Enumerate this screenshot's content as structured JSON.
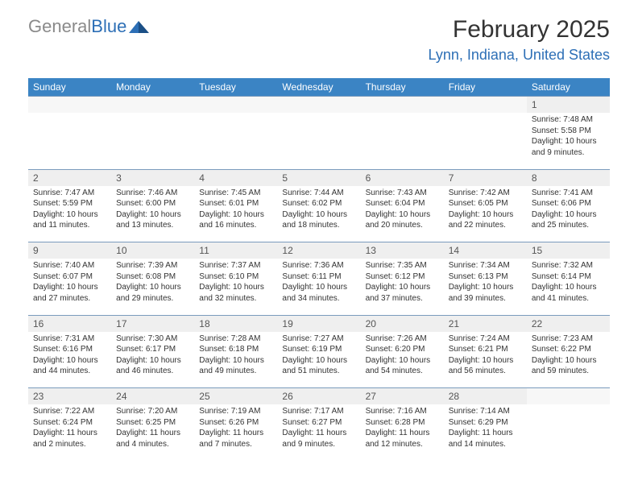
{
  "logo": {
    "part1": "General",
    "part2": "Blue"
  },
  "title": "February 2025",
  "location": "Lynn, Indiana, United States",
  "colors": {
    "header_bg": "#3b84c4",
    "header_text": "#ffffff",
    "daynum_bg": "#efefef",
    "border": "#7a9bbd",
    "logo_grey": "#8a8a8a",
    "logo_blue": "#2d6fb6"
  },
  "day_names": [
    "Sunday",
    "Monday",
    "Tuesday",
    "Wednesday",
    "Thursday",
    "Friday",
    "Saturday"
  ],
  "weeks": [
    [
      null,
      null,
      null,
      null,
      null,
      null,
      {
        "n": "1",
        "sr": "7:48 AM",
        "ss": "5:58 PM",
        "dl": "10 hours and 9 minutes."
      }
    ],
    [
      {
        "n": "2",
        "sr": "7:47 AM",
        "ss": "5:59 PM",
        "dl": "10 hours and 11 minutes."
      },
      {
        "n": "3",
        "sr": "7:46 AM",
        "ss": "6:00 PM",
        "dl": "10 hours and 13 minutes."
      },
      {
        "n": "4",
        "sr": "7:45 AM",
        "ss": "6:01 PM",
        "dl": "10 hours and 16 minutes."
      },
      {
        "n": "5",
        "sr": "7:44 AM",
        "ss": "6:02 PM",
        "dl": "10 hours and 18 minutes."
      },
      {
        "n": "6",
        "sr": "7:43 AM",
        "ss": "6:04 PM",
        "dl": "10 hours and 20 minutes."
      },
      {
        "n": "7",
        "sr": "7:42 AM",
        "ss": "6:05 PM",
        "dl": "10 hours and 22 minutes."
      },
      {
        "n": "8",
        "sr": "7:41 AM",
        "ss": "6:06 PM",
        "dl": "10 hours and 25 minutes."
      }
    ],
    [
      {
        "n": "9",
        "sr": "7:40 AM",
        "ss": "6:07 PM",
        "dl": "10 hours and 27 minutes."
      },
      {
        "n": "10",
        "sr": "7:39 AM",
        "ss": "6:08 PM",
        "dl": "10 hours and 29 minutes."
      },
      {
        "n": "11",
        "sr": "7:37 AM",
        "ss": "6:10 PM",
        "dl": "10 hours and 32 minutes."
      },
      {
        "n": "12",
        "sr": "7:36 AM",
        "ss": "6:11 PM",
        "dl": "10 hours and 34 minutes."
      },
      {
        "n": "13",
        "sr": "7:35 AM",
        "ss": "6:12 PM",
        "dl": "10 hours and 37 minutes."
      },
      {
        "n": "14",
        "sr": "7:34 AM",
        "ss": "6:13 PM",
        "dl": "10 hours and 39 minutes."
      },
      {
        "n": "15",
        "sr": "7:32 AM",
        "ss": "6:14 PM",
        "dl": "10 hours and 41 minutes."
      }
    ],
    [
      {
        "n": "16",
        "sr": "7:31 AM",
        "ss": "6:16 PM",
        "dl": "10 hours and 44 minutes."
      },
      {
        "n": "17",
        "sr": "7:30 AM",
        "ss": "6:17 PM",
        "dl": "10 hours and 46 minutes."
      },
      {
        "n": "18",
        "sr": "7:28 AM",
        "ss": "6:18 PM",
        "dl": "10 hours and 49 minutes."
      },
      {
        "n": "19",
        "sr": "7:27 AM",
        "ss": "6:19 PM",
        "dl": "10 hours and 51 minutes."
      },
      {
        "n": "20",
        "sr": "7:26 AM",
        "ss": "6:20 PM",
        "dl": "10 hours and 54 minutes."
      },
      {
        "n": "21",
        "sr": "7:24 AM",
        "ss": "6:21 PM",
        "dl": "10 hours and 56 minutes."
      },
      {
        "n": "22",
        "sr": "7:23 AM",
        "ss": "6:22 PM",
        "dl": "10 hours and 59 minutes."
      }
    ],
    [
      {
        "n": "23",
        "sr": "7:22 AM",
        "ss": "6:24 PM",
        "dl": "11 hours and 2 minutes."
      },
      {
        "n": "24",
        "sr": "7:20 AM",
        "ss": "6:25 PM",
        "dl": "11 hours and 4 minutes."
      },
      {
        "n": "25",
        "sr": "7:19 AM",
        "ss": "6:26 PM",
        "dl": "11 hours and 7 minutes."
      },
      {
        "n": "26",
        "sr": "7:17 AM",
        "ss": "6:27 PM",
        "dl": "11 hours and 9 minutes."
      },
      {
        "n": "27",
        "sr": "7:16 AM",
        "ss": "6:28 PM",
        "dl": "11 hours and 12 minutes."
      },
      {
        "n": "28",
        "sr": "7:14 AM",
        "ss": "6:29 PM",
        "dl": "11 hours and 14 minutes."
      },
      null
    ]
  ],
  "labels": {
    "sunrise": "Sunrise:",
    "sunset": "Sunset:",
    "daylight": "Daylight:"
  }
}
